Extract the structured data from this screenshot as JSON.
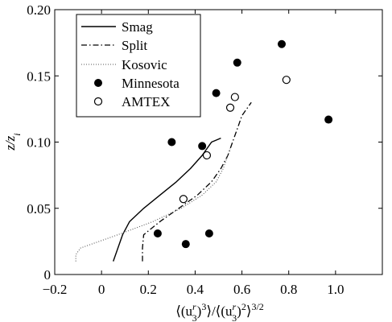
{
  "chart_data": {
    "type": "line",
    "xlabel": "⟨(u₃ʳ)³⟩/⟨(u₃ʳ)²⟩³ᐟ²",
    "ylabel": "z/zᵢ",
    "xlim": [
      -0.2,
      1.2
    ],
    "ylim": [
      0,
      0.2
    ],
    "x_ticks": [
      -0.2,
      0,
      0.2,
      0.4,
      0.6,
      0.8,
      1.0
    ],
    "x_tick_labels": [
      "−0.2",
      "0",
      "0.2",
      "0.4",
      "0.6",
      "0.8",
      "1.0"
    ],
    "y_ticks": [
      0,
      0.05,
      0.1,
      0.15,
      0.2
    ],
    "y_tick_labels": [
      "0",
      "0.05",
      "0.10",
      "0.15",
      "0.20"
    ],
    "legend_placement": "top-left",
    "series": [
      {
        "name": "Smag",
        "kind": "line",
        "style": "solid",
        "x": [
          0.05,
          0.07,
          0.09,
          0.12,
          0.18,
          0.25,
          0.32,
          0.38,
          0.43,
          0.47,
          0.51
        ],
        "y": [
          0.01,
          0.02,
          0.03,
          0.04,
          0.05,
          0.06,
          0.07,
          0.08,
          0.09,
          0.1,
          0.103
        ]
      },
      {
        "name": "Split",
        "kind": "line",
        "style": "dashdot",
        "x": [
          0.175,
          0.175,
          0.18,
          0.25,
          0.33,
          0.41,
          0.47,
          0.51,
          0.54,
          0.56,
          0.58,
          0.6,
          0.62,
          0.64
        ],
        "y": [
          0.01,
          0.02,
          0.03,
          0.04,
          0.05,
          0.06,
          0.07,
          0.08,
          0.09,
          0.1,
          0.11,
          0.12,
          0.125,
          0.13
        ]
      },
      {
        "name": "Kosovic",
        "kind": "line",
        "style": "dotted",
        "x": [
          -0.11,
          -0.11,
          -0.09,
          0.07,
          0.22,
          0.34,
          0.43,
          0.49,
          0.52,
          0.54,
          0.55
        ],
        "y": [
          0.01,
          0.015,
          0.02,
          0.03,
          0.04,
          0.05,
          0.06,
          0.07,
          0.08,
          0.09,
          0.095
        ]
      },
      {
        "name": "Minnesota",
        "kind": "scatter",
        "marker": "filled-circle",
        "x": [
          0.24,
          0.36,
          0.46,
          0.3,
          0.43,
          0.49,
          0.58,
          0.77,
          0.97
        ],
        "y": [
          0.031,
          0.023,
          0.031,
          0.1,
          0.097,
          0.137,
          0.16,
          0.174,
          0.117
        ]
      },
      {
        "name": "AMTEX",
        "kind": "scatter",
        "marker": "open-circle",
        "x": [
          0.35,
          0.45,
          0.55,
          0.57,
          0.79
        ],
        "y": [
          0.057,
          0.09,
          0.126,
          0.134,
          0.147
        ]
      }
    ]
  }
}
